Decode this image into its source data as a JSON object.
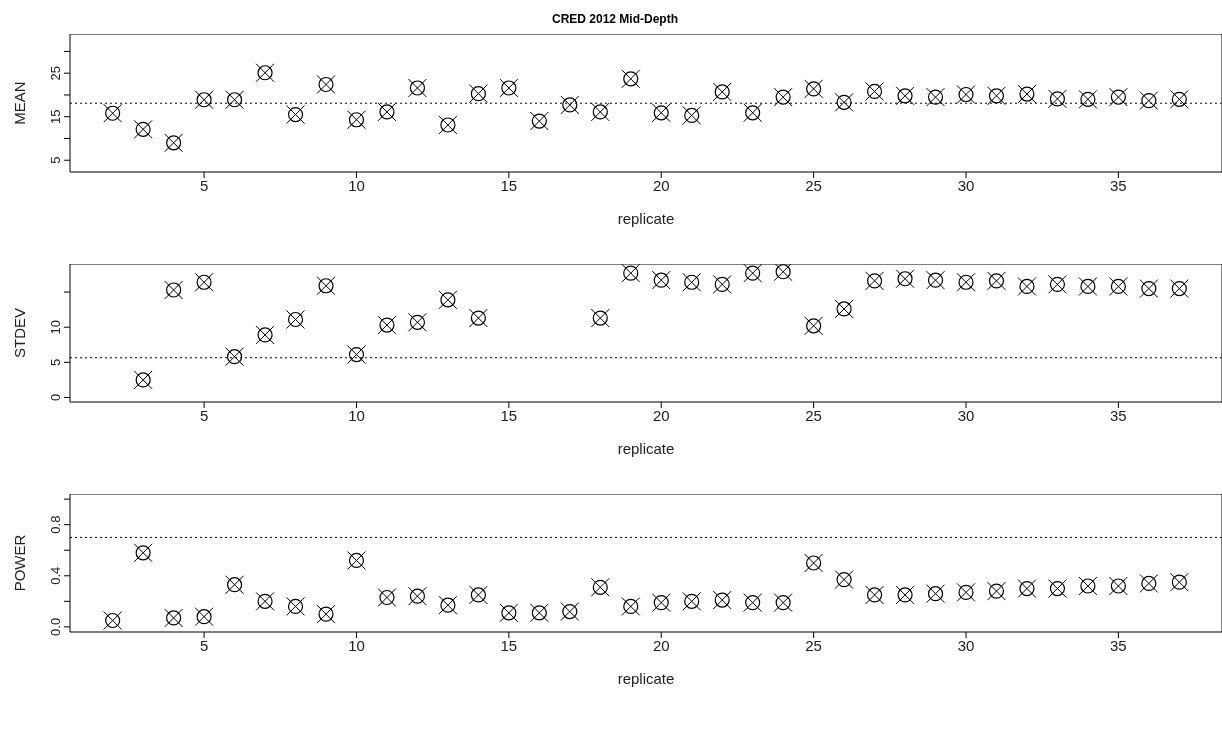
{
  "chart_data": [
    {
      "type": "scatter",
      "title": "CRED 2012 Mid-Depth",
      "xlabel": "replicate",
      "ylabel": "MEAN",
      "marker": "circle",
      "x": [
        2,
        3,
        4,
        5,
        6,
        7,
        8,
        9,
        10,
        11,
        12,
        13,
        14,
        15,
        16,
        17,
        18,
        19,
        20,
        21,
        22,
        23,
        24,
        25,
        26,
        27,
        28,
        29,
        30,
        31,
        32,
        33,
        34,
        35,
        36,
        37
      ],
      "series": [
        {
          "color": "#000000",
          "values": [
            15.8,
            12.1,
            9.0,
            18.9,
            18.9,
            25.1,
            15.5,
            22.4,
            14.3,
            16.1,
            21.6,
            13.1,
            20.3,
            21.6,
            14.0,
            17.7,
            16.1,
            23.7,
            15.9,
            15.3,
            20.7,
            15.9,
            19.5,
            21.4,
            18.3,
            20.8,
            19.8,
            19.5,
            20.1,
            19.8,
            20.2,
            19.1,
            19.0,
            19.5,
            18.7,
            19.0
          ]
        }
      ],
      "xlim": [
        0.6,
        38.4
      ],
      "xticks": [
        5,
        10,
        15,
        20,
        25,
        30,
        35
      ],
      "ylim": [
        2.3,
        34
      ],
      "yticks": [
        5,
        {
          "value": 10,
          "label": null
        },
        15,
        {
          "value": 20,
          "label": null
        },
        25,
        {
          "value": 30,
          "label": null
        }
      ],
      "ref_lines": [
        {
          "axis": "y",
          "value": 18.1,
          "line_style": "dotted",
          "color": "#000000"
        }
      ]
    },
    {
      "type": "scatter",
      "xlabel": "replicate",
      "ylabel": "STDEV",
      "marker": "circle",
      "x": [
        3,
        4,
        5,
        6,
        7,
        8,
        9,
        10,
        11,
        12,
        13,
        14,
        18,
        19,
        20,
        21,
        22,
        23,
        24,
        25,
        26,
        27,
        28,
        29,
        30,
        31,
        32,
        33,
        34,
        35,
        36,
        37
      ],
      "series": [
        {
          "color": "#000000",
          "values": [
            2.5,
            15.3,
            16.4,
            5.8,
            8.9,
            11.1,
            15.9,
            6.1,
            10.3,
            10.7,
            13.9,
            11.3,
            11.3,
            17.7,
            16.7,
            16.4,
            16.1,
            17.7,
            17.9,
            10.2,
            12.6,
            16.6,
            16.9,
            16.7,
            16.4,
            16.6,
            15.8,
            16.1,
            15.8,
            15.8,
            15.5,
            15.5
          ]
        }
      ],
      "xlim": [
        0.6,
        38.4
      ],
      "xticks": [
        5,
        10,
        15,
        20,
        25,
        30,
        35
      ],
      "ylim": [
        -0.65,
        19
      ],
      "yticks": [
        0,
        5,
        10,
        {
          "value": 15,
          "label": null
        }
      ],
      "ref_lines": [
        {
          "axis": "y",
          "value": 5.65,
          "line_style": "dotted",
          "color": "#000000"
        }
      ]
    },
    {
      "type": "scatter",
      "xlabel": "replicate",
      "ylabel": "POWER",
      "marker": "circle",
      "x": [
        2,
        3,
        4,
        5,
        6,
        7,
        8,
        9,
        10,
        11,
        12,
        13,
        14,
        15,
        16,
        17,
        18,
        19,
        20,
        21,
        22,
        23,
        24,
        25,
        26,
        27,
        28,
        29,
        30,
        31,
        32,
        33,
        34,
        35,
        36,
        37
      ],
      "series": [
        {
          "color": "#000000",
          "values": [
            0.05,
            0.58,
            0.07,
            0.08,
            0.33,
            0.2,
            0.16,
            0.1,
            0.52,
            0.23,
            0.24,
            0.17,
            0.25,
            0.11,
            0.11,
            0.12,
            0.31,
            0.16,
            0.19,
            0.2,
            0.21,
            0.19,
            0.19,
            0.5,
            0.37,
            0.25,
            0.25,
            0.26,
            0.27,
            0.28,
            0.3,
            0.3,
            0.32,
            0.32,
            0.34,
            0.35
          ]
        }
      ],
      "xlim": [
        0.6,
        38.4
      ],
      "xticks": [
        5,
        10,
        15,
        20,
        25,
        30,
        35
      ],
      "ylim": [
        -0.04,
        1.04
      ],
      "yticks": [
        "0.0",
        {
          "value": 0.2,
          "label": null
        },
        0.4,
        {
          "value": 0.6,
          "label": null
        },
        0.8,
        {
          "value": 1.0,
          "label": null
        }
      ],
      "ref_lines": [
        {
          "axis": "y",
          "value": 0.7,
          "line_style": "dotted",
          "color": "#000000"
        }
      ]
    }
  ]
}
